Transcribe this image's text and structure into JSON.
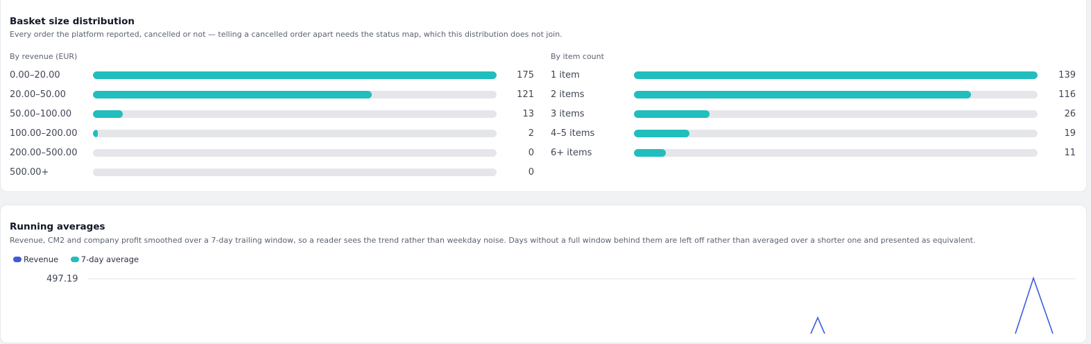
{
  "colors": {
    "accent": "#22bdbd",
    "revenue": "#3b5bdb",
    "track": "#e5e6ea"
  },
  "basket": {
    "title": "Basket size distribution",
    "description": "Every order the platform reported, cancelled or not — telling a cancelled order apart needs the status map, which this distribution does not join.",
    "by_revenue": {
      "heading": "By revenue (EUR)",
      "rows": [
        {
          "label": "0.00–20.00",
          "count": "175",
          "value": 175
        },
        {
          "label": "20.00–50.00",
          "count": "121",
          "value": 121
        },
        {
          "label": "50.00–100.00",
          "count": "13",
          "value": 13
        },
        {
          "label": "100.00–200.00",
          "count": "2",
          "value": 2
        },
        {
          "label": "200.00–500.00",
          "count": "0",
          "value": 0
        },
        {
          "label": "500.00+",
          "count": "0",
          "value": 0
        }
      ]
    },
    "by_items": {
      "heading": "By item count",
      "rows": [
        {
          "label": "1 item",
          "count": "139",
          "value": 139
        },
        {
          "label": "2 items",
          "count": "116",
          "value": 116
        },
        {
          "label": "3 items",
          "count": "26",
          "value": 26
        },
        {
          "label": "4–5 items",
          "count": "19",
          "value": 19
        },
        {
          "label": "6+ items",
          "count": "11",
          "value": 11
        }
      ]
    }
  },
  "running": {
    "title": "Running averages",
    "description": "Revenue, CM2 and company profit smoothed over a 7-day trailing window, so a reader sees the trend rather than weekday noise. Days without a full window behind them are left off rather than averaged over a shorter one and presented as equivalent.",
    "legend": [
      {
        "name": "Revenue",
        "color": "#3b5bdb"
      },
      {
        "name": "7-day average",
        "color": "#22bdbd"
      }
    ],
    "y_max_label": "497.19"
  },
  "chart_data": {
    "type": "line",
    "title": "Running averages",
    "series": [
      {
        "name": "Revenue",
        "color": "#3b5bdb",
        "visible_peaks": [
          497.19
        ]
      },
      {
        "name": "7-day average",
        "color": "#22bdbd"
      }
    ],
    "yticks": [
      "497.19"
    ],
    "grid": true,
    "legend": "top-left"
  }
}
